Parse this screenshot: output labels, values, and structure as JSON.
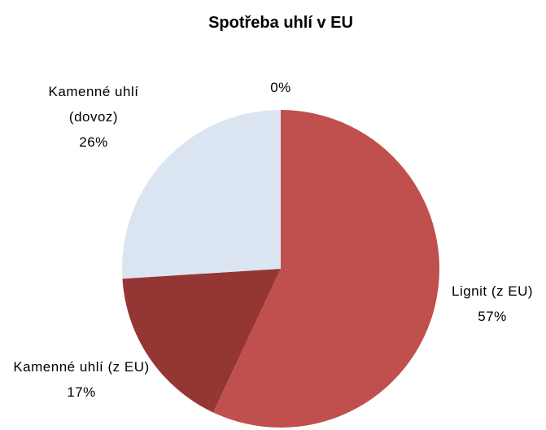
{
  "chart_data": {
    "type": "pie",
    "title": "Spotřeba uhlí v EU",
    "categories": [
      "Lignit (z EU)",
      "Kamenné uhlí (z EU)",
      "Kamenné uhlí (dovoz)",
      null
    ],
    "values": [
      57,
      17,
      26,
      0
    ],
    "value_labels": [
      "57%",
      "17%",
      "26%",
      "0%"
    ],
    "colors": [
      "#c0504d",
      "#943634",
      "#dbe5f1",
      "#4f81bd"
    ]
  }
}
